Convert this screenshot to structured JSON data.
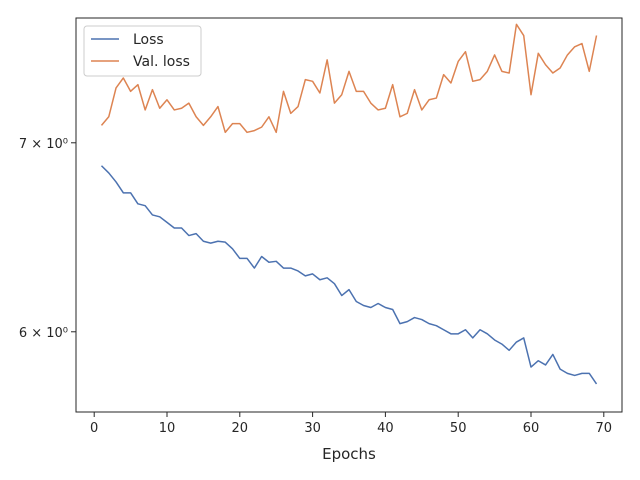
{
  "chart_data": {
    "type": "line",
    "title": "",
    "xlabel": "Epochs",
    "ylabel": "",
    "yscale": "log",
    "xlim": [
      -2.5,
      72.5
    ],
    "ylim": [
      5.62,
      7.75
    ],
    "x_ticks": [
      0,
      10,
      20,
      30,
      40,
      50,
      60,
      70
    ],
    "x_tick_labels": [
      "0",
      "10",
      "20",
      "30",
      "40",
      "50",
      "60",
      "70"
    ],
    "y_ticks": [
      6,
      7
    ],
    "y_tick_labels": [
      "6 × 10⁰",
      "7 × 10⁰"
    ],
    "grid": false,
    "legend_position": "top-left",
    "series": [
      {
        "name": "Loss",
        "color": "#4c72b0",
        "x": [
          1,
          2,
          3,
          4,
          5,
          6,
          7,
          8,
          9,
          10,
          11,
          12,
          13,
          14,
          15,
          16,
          17,
          18,
          19,
          20,
          21,
          22,
          23,
          24,
          25,
          26,
          27,
          28,
          29,
          30,
          31,
          32,
          33,
          34,
          35,
          36,
          37,
          38,
          39,
          40,
          41,
          42,
          43,
          44,
          45,
          46,
          47,
          48,
          49,
          50,
          51,
          52,
          53,
          54,
          55,
          56,
          57,
          58,
          59,
          60,
          61,
          62,
          63,
          64,
          65,
          66,
          67,
          68,
          69
        ],
        "values": [
          6.87,
          6.83,
          6.78,
          6.72,
          6.72,
          6.66,
          6.65,
          6.6,
          6.59,
          6.56,
          6.53,
          6.53,
          6.49,
          6.5,
          6.46,
          6.45,
          6.46,
          6.455,
          6.42,
          6.37,
          6.37,
          6.32,
          6.38,
          6.35,
          6.355,
          6.32,
          6.32,
          6.305,
          6.28,
          6.29,
          6.26,
          6.27,
          6.24,
          6.18,
          6.21,
          6.15,
          6.13,
          6.12,
          6.14,
          6.12,
          6.11,
          6.04,
          6.05,
          6.07,
          6.06,
          6.04,
          6.03,
          6.01,
          5.99,
          5.99,
          6.01,
          5.97,
          6.01,
          5.99,
          5.96,
          5.94,
          5.91,
          5.95,
          5.97,
          5.83,
          5.86,
          5.84,
          5.89,
          5.82,
          5.8,
          5.79,
          5.8,
          5.8,
          5.75
        ]
      },
      {
        "name": "Val. loss",
        "color": "#dd8452",
        "x": [
          1,
          2,
          3,
          4,
          5,
          6,
          7,
          8,
          9,
          10,
          11,
          12,
          13,
          14,
          15,
          16,
          17,
          18,
          19,
          20,
          21,
          22,
          23,
          24,
          25,
          26,
          27,
          28,
          29,
          30,
          31,
          32,
          33,
          34,
          35,
          36,
          37,
          38,
          39,
          40,
          41,
          42,
          43,
          44,
          45,
          46,
          47,
          48,
          49,
          50,
          51,
          52,
          53,
          54,
          55,
          56,
          57,
          58,
          59,
          60,
          61,
          62,
          63,
          64,
          65,
          66,
          67,
          68,
          69
        ],
        "values": [
          7.1,
          7.15,
          7.32,
          7.38,
          7.3,
          7.34,
          7.19,
          7.31,
          7.2,
          7.25,
          7.19,
          7.2,
          7.23,
          7.15,
          7.1,
          7.15,
          7.21,
          7.06,
          7.11,
          7.11,
          7.06,
          7.07,
          7.09,
          7.15,
          7.06,
          7.3,
          7.17,
          7.21,
          7.37,
          7.36,
          7.29,
          7.49,
          7.23,
          7.28,
          7.42,
          7.3,
          7.3,
          7.23,
          7.19,
          7.2,
          7.34,
          7.15,
          7.17,
          7.31,
          7.19,
          7.25,
          7.26,
          7.4,
          7.35,
          7.48,
          7.54,
          7.36,
          7.37,
          7.42,
          7.52,
          7.42,
          7.41,
          7.71,
          7.64,
          7.28,
          7.53,
          7.46,
          7.41,
          7.44,
          7.52,
          7.57,
          7.59,
          7.42,
          7.64
        ]
      }
    ]
  }
}
